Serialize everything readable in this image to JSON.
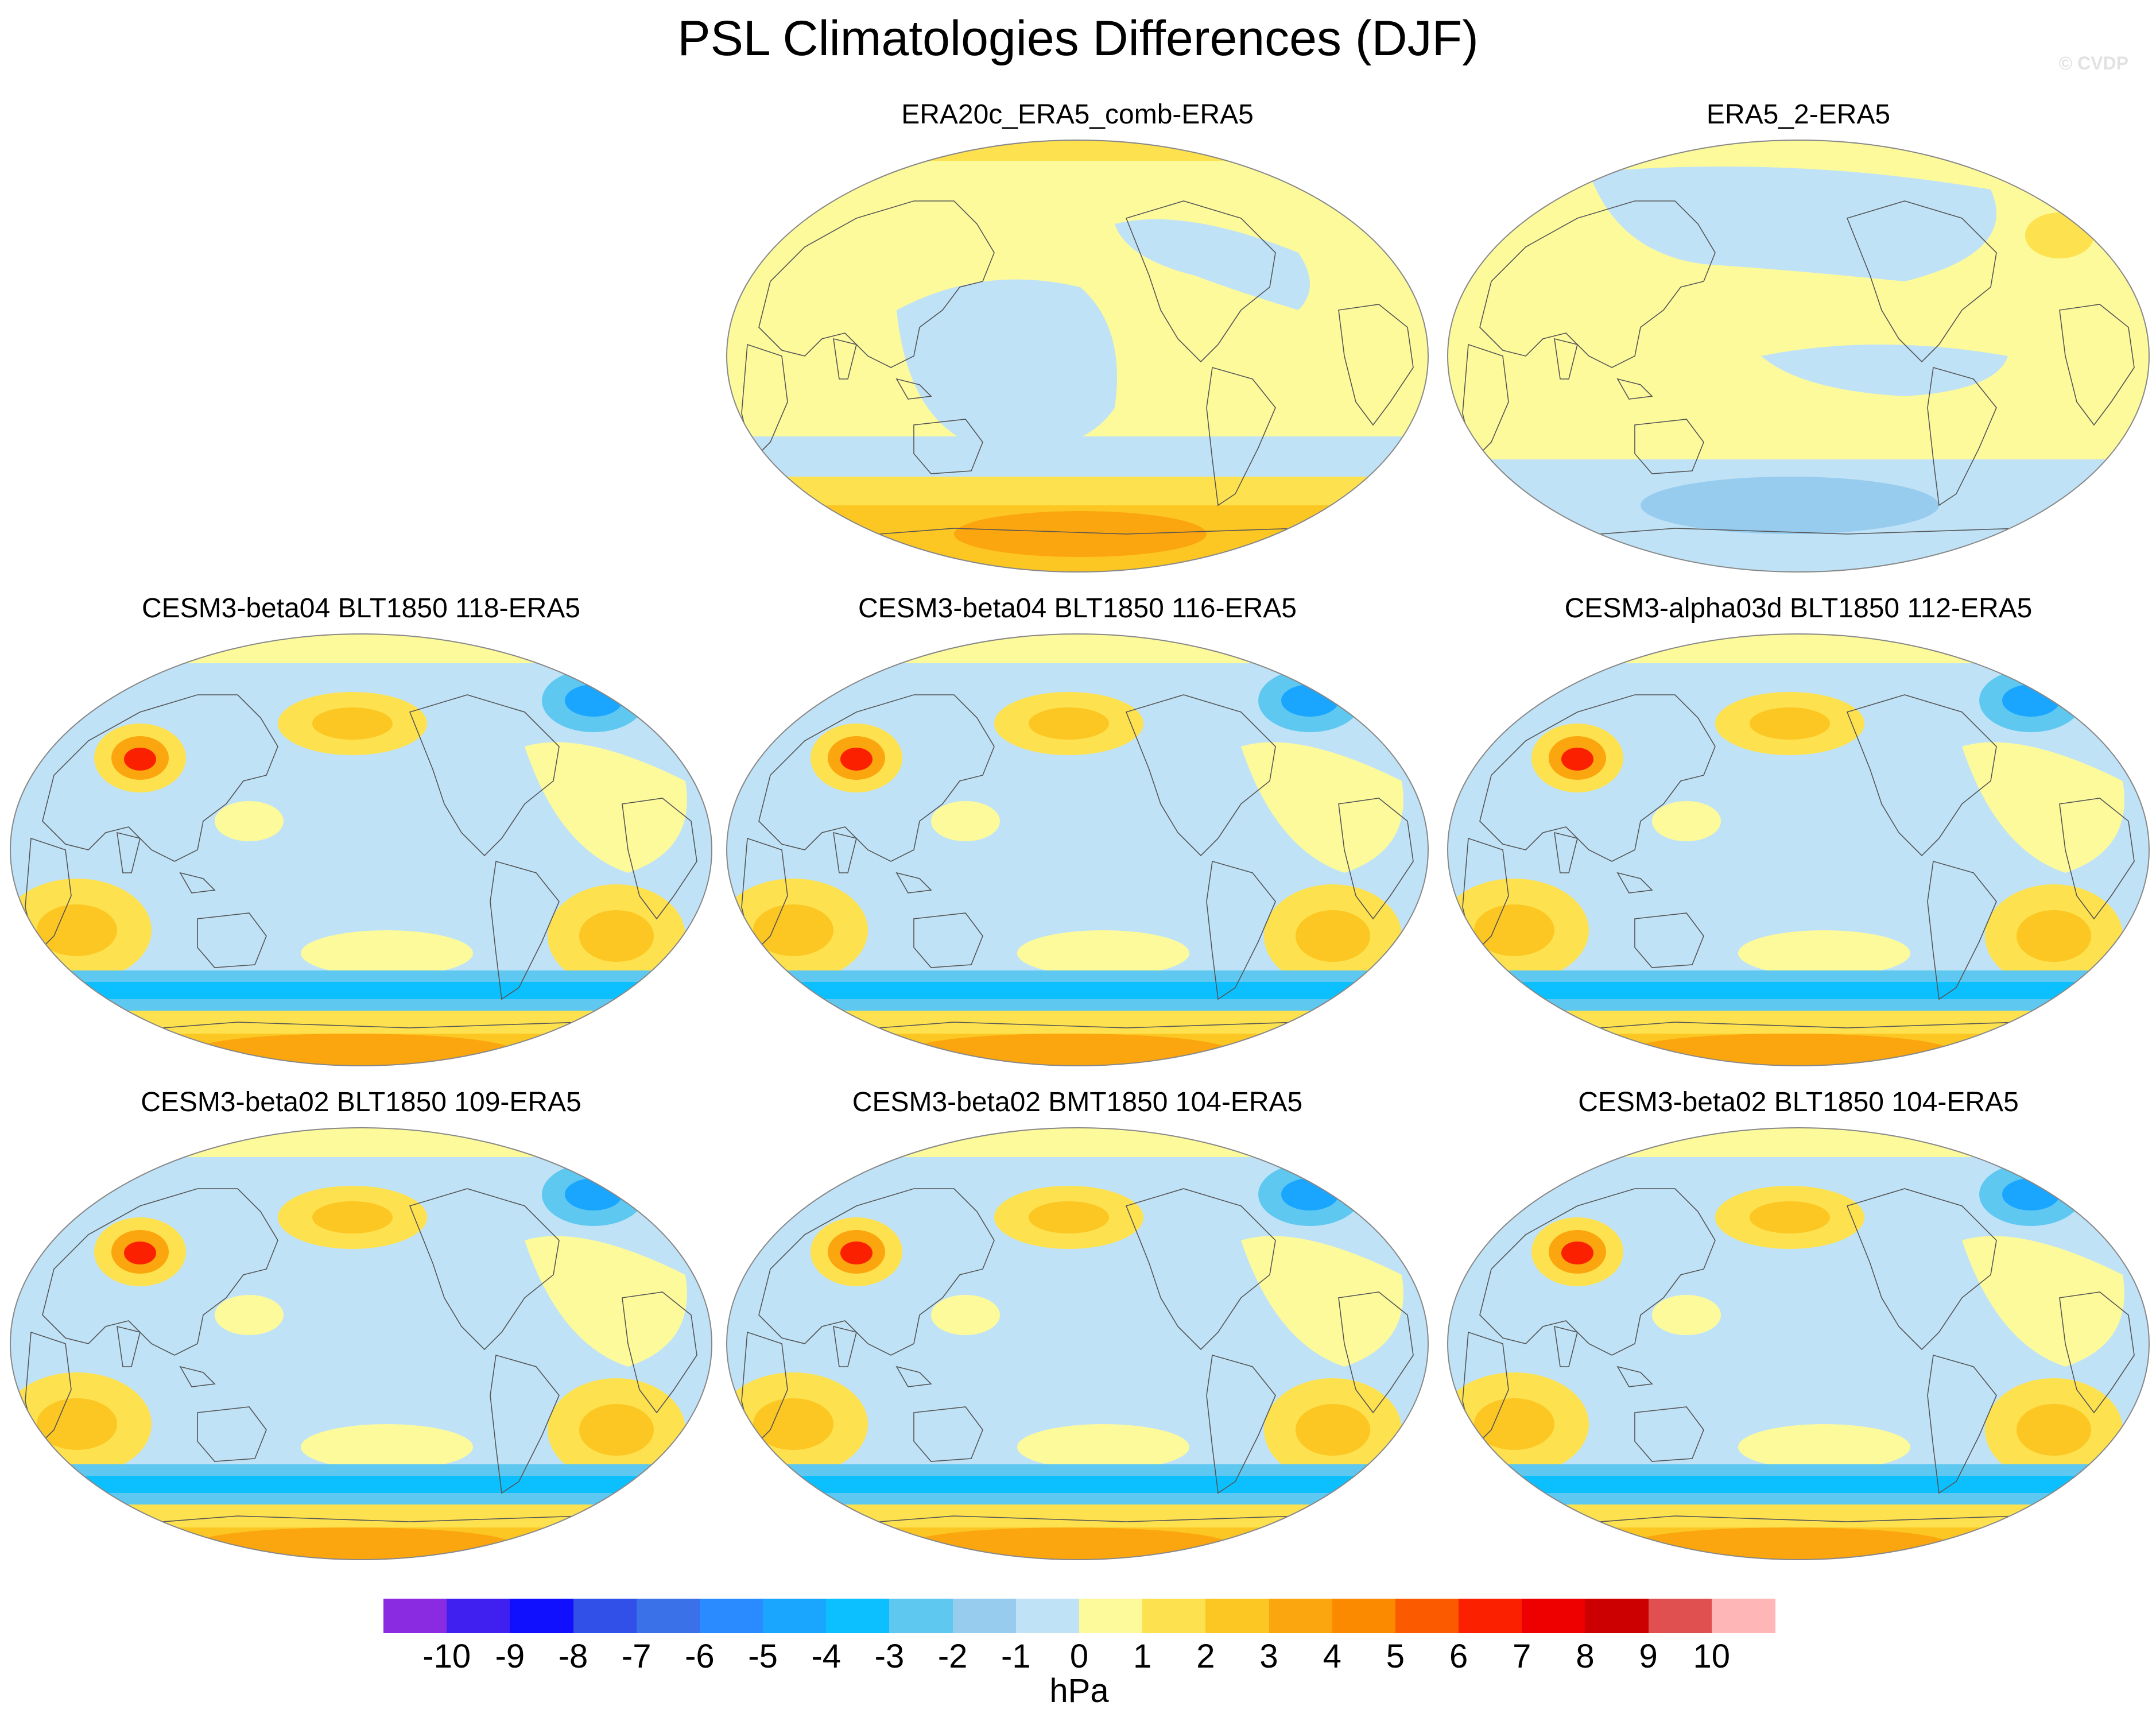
{
  "title": "PSL Climatologies Differences (DJF)",
  "credit": "© CVDP",
  "palette": [
    "#8a2be2",
    "#4020f0",
    "#1010ff",
    "#3050e8",
    "#3a70e8",
    "#2a8aff",
    "#1aa6ff",
    "#0cc0ff",
    "#5ec8f0",
    "#98ccee",
    "#bfe2f7",
    "#fdfa9c",
    "#fde14f",
    "#fcc623",
    "#fba60e",
    "#fb8a00",
    "#fb5a00",
    "#fa2000",
    "#ee0000",
    "#cc0000",
    "#e05050",
    "#ffb6b6"
  ],
  "colorbar": {
    "ticks": [
      "-10",
      "-9",
      "-8",
      "-7",
      "-6",
      "-5",
      "-4",
      "-3",
      "-2",
      "-1",
      "0",
      "1",
      "2",
      "3",
      "4",
      "5",
      "6",
      "7",
      "8",
      "9",
      "10"
    ],
    "unit": "hPa"
  },
  "panels": [
    {
      "title": "ERA20c_ERA5_comb-ERA5",
      "pattern": "era20c"
    },
    {
      "title": "ERA5_2-ERA5",
      "pattern": "era5"
    },
    {
      "title": "CESM3-beta04 BLT1850 118-ERA5",
      "pattern": "model"
    },
    {
      "title": "CESM3-beta04 BLT1850 116-ERA5",
      "pattern": "model"
    },
    {
      "title": "CESM3-alpha03d BLT1850 112-ERA5",
      "pattern": "model"
    },
    {
      "title": "CESM3-beta02 BLT1850 109-ERA5",
      "pattern": "model"
    },
    {
      "title": "CESM3-beta02 BMT1850 104-ERA5",
      "pattern": "model"
    },
    {
      "title": "CESM3-beta02 BLT1850 104-ERA5",
      "pattern": "model"
    }
  ]
}
